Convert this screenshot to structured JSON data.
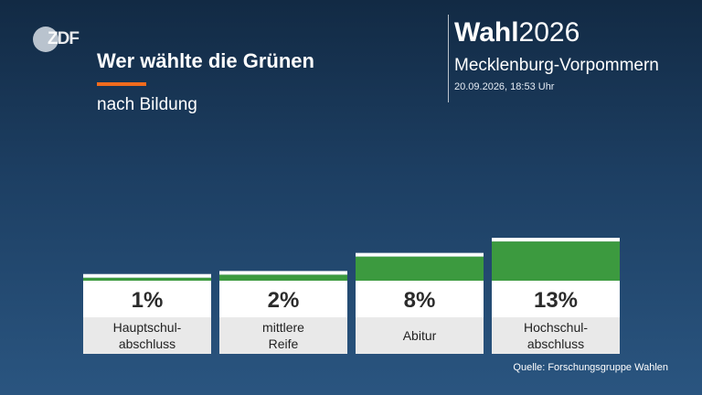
{
  "header": {
    "logo_text": "ZDF",
    "title": "Wer wählte die Grünen",
    "subtitle": "nach Bildung",
    "brand_strong": "Wahl",
    "brand_year": "2026",
    "region": "Mecklenburg-Vorpommern",
    "timestamp": "20.09.2026, 18:53 Uhr"
  },
  "colors": {
    "bar": "#3c9a3f",
    "accent_rule": "#f26b1d",
    "background_top": "#122a44",
    "background_bottom": "#2a5580"
  },
  "chart_data": {
    "type": "bar",
    "title": "Wer wählte die Grünen",
    "subtitle": "nach Bildung",
    "categories": [
      "Hauptschul-\nabschluss",
      "mittlere\nReife",
      "Abitur",
      "Hochschul-\nabschluss"
    ],
    "values": [
      1,
      2,
      8,
      13
    ],
    "value_labels": [
      "1%",
      "2%",
      "8%",
      "13%"
    ],
    "unit": "%",
    "ylim": [
      0,
      13
    ],
    "grid": false,
    "legend": "none"
  },
  "footer": {
    "source": "Quelle: Forschungsgruppe Wahlen"
  }
}
